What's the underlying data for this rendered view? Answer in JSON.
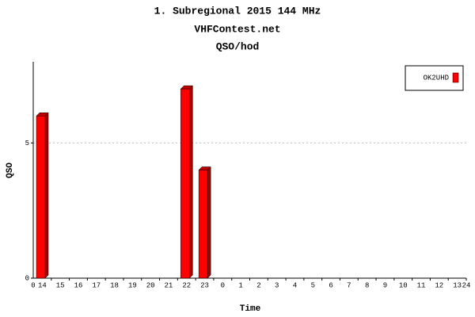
{
  "chart_data": {
    "type": "bar",
    "title": "1. Subregional 2015 144 MHz",
    "subtitle": "VHFContest.net",
    "subtitle2": "QSO/hod",
    "x_label": "Time",
    "y_label": "QSO",
    "categories": [
      "14",
      "15",
      "16",
      "17",
      "18",
      "19",
      "20",
      "21",
      "22",
      "23",
      "0",
      "1",
      "2",
      "3",
      "4",
      "5",
      "6",
      "7",
      "8",
      "9",
      "10",
      "11",
      "12",
      "13"
    ],
    "xlim": [
      0,
      24
    ],
    "series": [
      {
        "name": "OK2UHD",
        "color": "#ff0000",
        "values": [
          6,
          0,
          0,
          0,
          0,
          0,
          0,
          0,
          7,
          4,
          0,
          0,
          0,
          0,
          0,
          0,
          0,
          0,
          0,
          0,
          0,
          0,
          0,
          0
        ]
      }
    ],
    "ylim": [
      0,
      8
    ],
    "yticks": [
      0,
      5
    ],
    "grid": true,
    "legend": "top-right"
  }
}
